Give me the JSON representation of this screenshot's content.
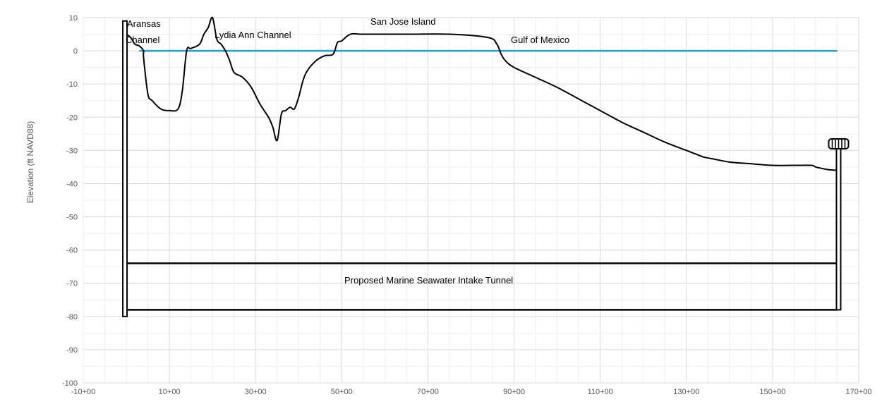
{
  "chart_data": {
    "type": "line",
    "title": "",
    "xlabel": "",
    "ylabel": "Elevation (ft NAVD88)",
    "xlim": [
      "-10+00",
      "170+00"
    ],
    "ylim": [
      -100,
      10
    ],
    "grid": true,
    "x_ticks": [
      "-10+00",
      "10+00",
      "30+00",
      "50+00",
      "70+00",
      "90+00",
      "110+00",
      "130+00",
      "150+00",
      "170+00"
    ],
    "y_ticks": [
      10,
      0,
      -10,
      -20,
      -30,
      -40,
      -50,
      -60,
      -70,
      -80,
      -90,
      -100
    ],
    "colors": {
      "seabed": "#000000",
      "water": "#1ea0dc",
      "grid": "#e6e6e6",
      "axis_text": "#595959"
    },
    "series": [
      {
        "x": [
          "0+00",
          "1+00",
          "2+00",
          "3+00",
          "4+00",
          "4+50",
          "5+00",
          "6+00",
          "8+00",
          "10+00",
          "12+00",
          "13+00",
          "14+00",
          "15+00",
          "17+00",
          "18+00",
          "19+00",
          "20+00",
          "21+00",
          "22+00",
          "23+00",
          "24+00",
          "25+00",
          "27+00",
          "29+00",
          "31+00",
          "33+00",
          "34+00",
          "35+00",
          "36+00",
          "37+00",
          "38+00",
          "39+00",
          "40+00",
          "41+00",
          "42+00",
          "44+00",
          "46+00",
          "48+00",
          "49+00",
          "50+00",
          "52+00",
          "55+00",
          "65+00",
          "75+00",
          "84+00",
          "86+00",
          "87+00",
          "88+00",
          "90+00",
          "95+00",
          "100+00",
          "105+00",
          "110+00",
          "115+00",
          "120+00",
          "125+00",
          "130+00",
          "132+00",
          "133+00",
          "134+00",
          "136+00",
          "140+00",
          "145+00",
          "150+00",
          "155+00",
          "159+00",
          "160+00",
          "161+00",
          "163+00",
          "165+00"
        ],
        "values": [
          5,
          4,
          2,
          1.5,
          0,
          -2,
          -13,
          -15,
          -17.5,
          -18,
          -17.5,
          -12,
          0,
          0.7,
          2,
          5,
          7,
          10,
          3.5,
          2,
          0,
          -3,
          -6.5,
          -8,
          -11,
          -16,
          -20,
          -23,
          -27,
          -19,
          -18,
          -17,
          -17.5,
          -14,
          -9,
          -6,
          -3,
          -1.5,
          -1,
          2.5,
          3,
          5,
          5,
          5,
          5,
          4,
          2,
          -1,
          -3,
          -5,
          -8,
          -11,
          -14.5,
          -18,
          -21.5,
          -24.5,
          -27.5,
          -30,
          -31,
          -31.5,
          -32,
          -32.5,
          -33.5,
          -34,
          -34.5,
          -34.5,
          -34.5,
          -35,
          -35.3,
          -35.8,
          -36
        ]
      },
      {
        "x": [
          "3+00",
          "165+00"
        ],
        "values": [
          0,
          0
        ]
      }
    ],
    "annotations": [
      "Aransas",
      "Channel",
      "Lydia Ann Channel",
      "San Jose Island",
      "Gulf of Mexico",
      "Proposed Marine Seawater Intake  Tunnel"
    ],
    "tunnel": {
      "x_start": "0+00",
      "x_end": "165+00",
      "top_elevation": -64,
      "bottom_elevation": -78
    },
    "shaft_left": {
      "x": "0+00",
      "top": 9,
      "bottom": -80
    },
    "shaft_right": {
      "x": "165+00",
      "top": -28,
      "bottom": -78
    }
  }
}
